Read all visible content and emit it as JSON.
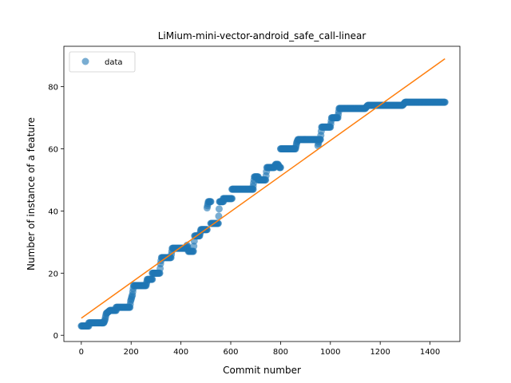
{
  "chart_data": {
    "type": "scatter",
    "title": "LiMium-mini-vector-android_safe_call-linear",
    "xlabel": "Commit number",
    "ylabel": "Number of instance of a feature",
    "xlim": [
      -70,
      1520
    ],
    "ylim": [
      -2,
      93
    ],
    "xticks": [
      0,
      200,
      400,
      600,
      800,
      1000,
      1200,
      1400
    ],
    "yticks": [
      0,
      20,
      40,
      60,
      80
    ],
    "grid": false,
    "legend": {
      "placement": "top-left",
      "entries": [
        "data"
      ]
    },
    "colors": {
      "data": "#1f77b4",
      "fit": "#ff7f0e"
    },
    "series": [
      {
        "name": "data",
        "kind": "scatter",
        "steps": [
          [
            0,
            3
          ],
          [
            30,
            3
          ],
          [
            30,
            4
          ],
          [
            90,
            4
          ],
          [
            95,
            5
          ],
          [
            100,
            7
          ],
          [
            115,
            8
          ],
          [
            140,
            8
          ],
          [
            140,
            9
          ],
          [
            195,
            9
          ],
          [
            198,
            11
          ],
          [
            205,
            13
          ],
          [
            210,
            16
          ],
          [
            260,
            16
          ],
          [
            265,
            18
          ],
          [
            285,
            18
          ],
          [
            285,
            20
          ],
          [
            315,
            20
          ],
          [
            318,
            23
          ],
          [
            322,
            25
          ],
          [
            360,
            25
          ],
          [
            365,
            28
          ],
          [
            420,
            28
          ],
          [
            425,
            29
          ],
          [
            430,
            27
          ],
          [
            450,
            27
          ],
          [
            455,
            32
          ],
          [
            475,
            32
          ],
          [
            480,
            34
          ],
          [
            505,
            34
          ],
          [
            505,
            41
          ],
          [
            510,
            43
          ],
          [
            520,
            43
          ],
          [
            520,
            36
          ],
          [
            550,
            36
          ],
          [
            555,
            43
          ],
          [
            570,
            43
          ],
          [
            570,
            44
          ],
          [
            605,
            44
          ],
          [
            605,
            47
          ],
          [
            690,
            47
          ],
          [
            690,
            48
          ],
          [
            695,
            51
          ],
          [
            710,
            51
          ],
          [
            710,
            50
          ],
          [
            740,
            50
          ],
          [
            745,
            54
          ],
          [
            775,
            54
          ],
          [
            780,
            55
          ],
          [
            790,
            55
          ],
          [
            795,
            54
          ],
          [
            800,
            54
          ],
          [
            800,
            60
          ],
          [
            860,
            60
          ],
          [
            865,
            62
          ],
          [
            870,
            63
          ],
          [
            950,
            63
          ],
          [
            950,
            61
          ],
          [
            955,
            63
          ],
          [
            960,
            63
          ],
          [
            965,
            67
          ],
          [
            1000,
            67
          ],
          [
            1005,
            70
          ],
          [
            1030,
            70
          ],
          [
            1035,
            73
          ],
          [
            1140,
            73
          ],
          [
            1150,
            74
          ],
          [
            1290,
            74
          ],
          [
            1300,
            75
          ],
          [
            1460,
            75
          ]
        ]
      },
      {
        "name": "",
        "kind": "line",
        "x": [
          0,
          1460
        ],
        "y": [
          5.5,
          89
        ]
      }
    ]
  }
}
